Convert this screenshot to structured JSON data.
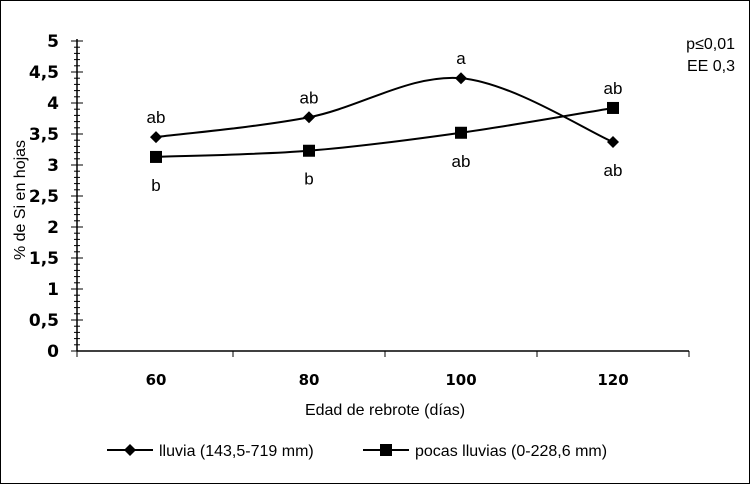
{
  "chart_data": {
    "type": "line",
    "xlabel": "Edad de rebrote (días)",
    "ylabel": "% de Si en hojas",
    "categories": [
      "60",
      "80",
      "100",
      "120"
    ],
    "y_ticks": [
      "0",
      "0,5",
      "1",
      "1,5",
      "2",
      "2,5",
      "3",
      "3,5",
      "4",
      "4,5",
      "5"
    ],
    "ylim": [
      0,
      5
    ],
    "grid": false,
    "stats": [
      "p≤0,01",
      "EE 0,3"
    ],
    "legend_position": "bottom",
    "series": [
      {
        "name": "lluvia (143,5-719 mm)",
        "marker": "diamond",
        "values": [
          3.45,
          3.77,
          4.4,
          3.37
        ],
        "letters": [
          "ab",
          "ab",
          "a",
          "ab"
        ]
      },
      {
        "name": "pocas lluvias (0-228,6 mm)",
        "marker": "square",
        "values": [
          3.13,
          3.23,
          3.52,
          3.92
        ],
        "letters": [
          "b",
          "b",
          "ab",
          "ab"
        ]
      }
    ],
    "colors": {
      "line": "#000000",
      "background": "#ffffff"
    }
  }
}
